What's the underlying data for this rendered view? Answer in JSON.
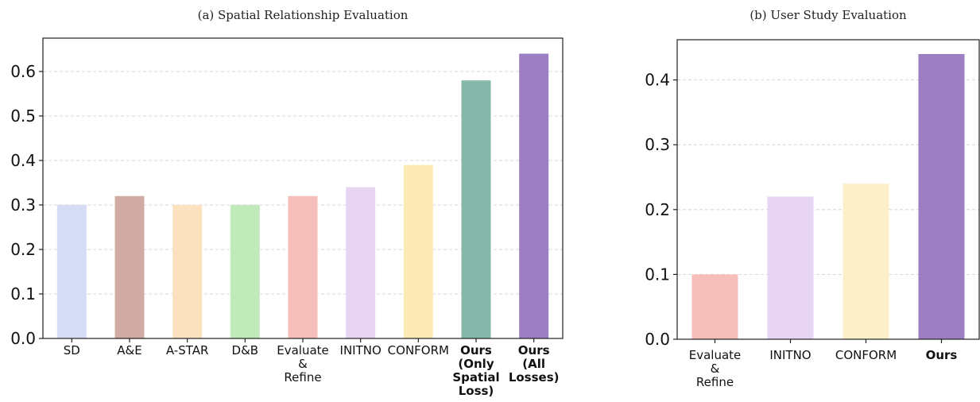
{
  "chart_data": [
    {
      "type": "bar",
      "title": "(a) Spatial Relationship Evaluation",
      "categories": [
        [
          "SD"
        ],
        [
          "A&E"
        ],
        [
          "A-STAR"
        ],
        [
          "D&B"
        ],
        [
          "Evaluate",
          "&",
          "Refine"
        ],
        [
          "INITNO"
        ],
        [
          "CONFORM"
        ],
        [
          "Ours",
          "(Only",
          "Spatial",
          "Loss)"
        ],
        [
          "Ours",
          "(All",
          "Losses)"
        ]
      ],
      "bold_categories": [
        7,
        8
      ],
      "values": [
        0.3,
        0.32,
        0.3,
        0.3,
        0.32,
        0.34,
        0.39,
        0.58,
        0.64
      ],
      "colors": [
        "#d6dcf6",
        "#d0aba4",
        "#fbe1bd",
        "#c1eabb",
        "#f6bebb",
        "#e7d4f3",
        "#fbeab4",
        "#86b9ab",
        "#9b7fc2"
      ],
      "yticks": [
        "0.0",
        "0.1",
        "0.2",
        "0.3",
        "0.4",
        "0.5",
        "0.6"
      ],
      "ylim": [
        0,
        0.675
      ],
      "grid": true
    },
    {
      "type": "bar",
      "title": "(b) User Study Evaluation",
      "categories": [
        [
          "Evaluate",
          "&",
          "Refine"
        ],
        [
          "INITNO"
        ],
        [
          "CONFORM"
        ],
        [
          "Ours"
        ]
      ],
      "bold_categories": [
        3
      ],
      "values": [
        0.1,
        0.22,
        0.24,
        0.44
      ],
      "colors": [
        "#f6bebb",
        "#e7d4f3",
        "#fbf0c9",
        "#9b7fc2"
      ],
      "yticks": [
        "0.0",
        "0.1",
        "0.2",
        "0.3",
        "0.4"
      ],
      "ylim": [
        0,
        0.462
      ],
      "grid": true
    }
  ]
}
